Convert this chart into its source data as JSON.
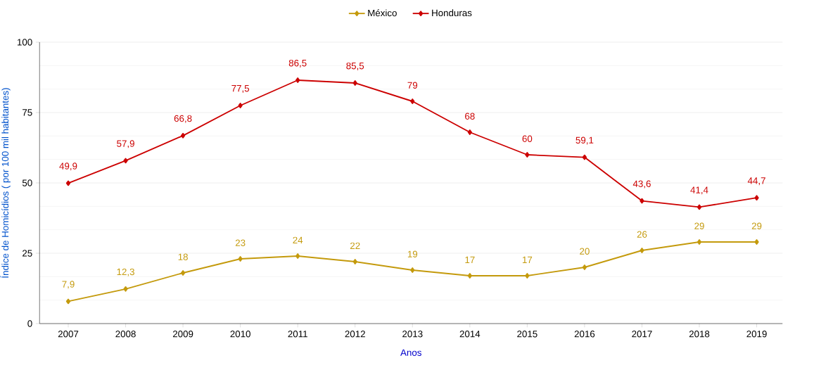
{
  "chart_data": {
    "type": "line",
    "xlabel": "Anos",
    "ylabel": "Índice de Homicídios ( por 100 mil habitantes)",
    "categories": [
      "2007",
      "2008",
      "2009",
      "2010",
      "2011",
      "2012",
      "2013",
      "2014",
      "2015",
      "2016",
      "2017",
      "2018",
      "2019"
    ],
    "series": [
      {
        "name": "México",
        "color": "#c49a0c",
        "values": [
          7.9,
          12.3,
          18,
          23,
          24,
          22,
          19,
          17,
          17,
          20,
          26,
          29,
          29
        ],
        "value_labels": [
          "7,9",
          "12,3",
          "18",
          "23",
          "24",
          "22",
          "19",
          "17",
          "17",
          "20",
          "26",
          "29",
          "29"
        ]
      },
      {
        "name": "Honduras",
        "color": "#cc0000",
        "values": [
          49.9,
          57.9,
          66.8,
          77.5,
          86.5,
          85.5,
          79,
          68,
          60,
          59.1,
          43.6,
          41.4,
          44.7
        ],
        "value_labels": [
          "49,9",
          "57,9",
          "66,8",
          "77,5",
          "86,5",
          "85,5",
          "79",
          "68",
          "60",
          "59,1",
          "43,6",
          "41,4",
          "44,7"
        ]
      }
    ],
    "ylim": [
      0,
      100
    ],
    "yticks": [
      0,
      25,
      50,
      75,
      100
    ],
    "grid": "y",
    "legend": "top",
    "marker": "diamond",
    "line_style": "solid"
  }
}
